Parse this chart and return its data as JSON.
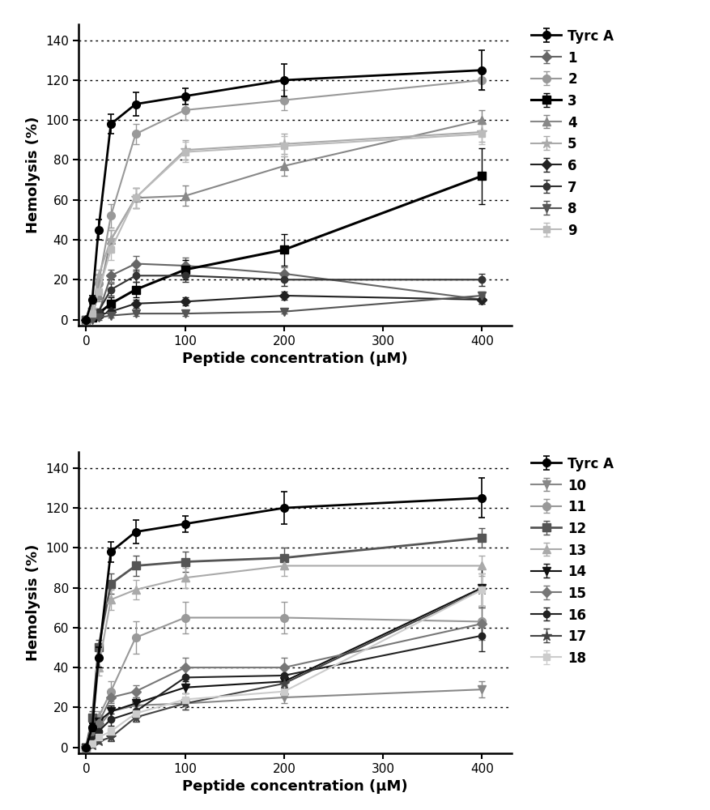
{
  "x": [
    0,
    6.25,
    12.5,
    25,
    50,
    100,
    200,
    400
  ],
  "tyrcA": {
    "y": [
      0,
      10,
      45,
      98,
      108,
      112,
      120,
      125
    ],
    "yerr": [
      0,
      2,
      5,
      5,
      6,
      4,
      8,
      10
    ],
    "color": "#000000",
    "marker": "o",
    "label": "Tyrc A",
    "lw": 2.0,
    "ms": 7
  },
  "plot1": {
    "series": [
      {
        "label": "1",
        "y": [
          0,
          1,
          3,
          22,
          28,
          27,
          23,
          10
        ],
        "yerr": [
          0,
          1,
          2,
          3,
          4,
          4,
          3,
          2
        ],
        "color": "#666666",
        "marker": "D",
        "lw": 1.5,
        "ms": 6
      },
      {
        "label": "2",
        "y": [
          0,
          4,
          18,
          52,
          93,
          105,
          110,
          120
        ],
        "yerr": [
          0,
          2,
          3,
          6,
          5,
          5,
          5,
          5
        ],
        "color": "#999999",
        "marker": "o",
        "lw": 1.5,
        "ms": 7
      },
      {
        "label": "3",
        "y": [
          0,
          1,
          3,
          8,
          15,
          25,
          35,
          72
        ],
        "yerr": [
          0,
          1,
          2,
          3,
          4,
          5,
          8,
          14
        ],
        "color": "#000000",
        "marker": "s",
        "lw": 2.2,
        "ms": 7
      },
      {
        "label": "4",
        "y": [
          0,
          3,
          12,
          40,
          61,
          62,
          77,
          100
        ],
        "yerr": [
          0,
          1,
          3,
          5,
          5,
          5,
          5,
          5
        ],
        "color": "#888888",
        "marker": "^",
        "lw": 1.5,
        "ms": 7
      },
      {
        "label": "5",
        "y": [
          0,
          5,
          22,
          40,
          61,
          85,
          88,
          94
        ],
        "yerr": [
          0,
          2,
          3,
          5,
          5,
          5,
          5,
          5
        ],
        "color": "#aaaaaa",
        "marker": "*",
        "lw": 1.5,
        "ms": 9
      },
      {
        "label": "6",
        "y": [
          0,
          1,
          2,
          4,
          8,
          9,
          12,
          10
        ],
        "yerr": [
          0,
          1,
          1,
          1,
          2,
          2,
          2,
          2
        ],
        "color": "#222222",
        "marker": "D",
        "lw": 1.5,
        "ms": 6
      },
      {
        "label": "7",
        "y": [
          0,
          2,
          4,
          15,
          22,
          22,
          20,
          20
        ],
        "yerr": [
          0,
          1,
          1,
          3,
          3,
          3,
          3,
          3
        ],
        "color": "#333333",
        "marker": "o",
        "lw": 1.5,
        "ms": 6
      },
      {
        "label": "8",
        "y": [
          0,
          0,
          1,
          2,
          3,
          3,
          4,
          12
        ],
        "yerr": [
          0,
          0,
          1,
          1,
          1,
          1,
          1,
          2
        ],
        "color": "#555555",
        "marker": "v",
        "lw": 1.5,
        "ms": 7
      },
      {
        "label": "9",
        "y": [
          0,
          3,
          14,
          35,
          61,
          84,
          87,
          93
        ],
        "yerr": [
          0,
          2,
          3,
          5,
          5,
          5,
          5,
          5
        ],
        "color": "#bbbbbb",
        "marker": "s",
        "lw": 1.5,
        "ms": 6
      }
    ]
  },
  "plot2": {
    "series": [
      {
        "label": "10",
        "y": [
          0,
          3,
          10,
          18,
          21,
          22,
          25,
          29
        ],
        "yerr": [
          0,
          1,
          2,
          3,
          3,
          3,
          3,
          4
        ],
        "color": "#888888",
        "marker": "v",
        "lw": 1.5,
        "ms": 7
      },
      {
        "label": "11",
        "y": [
          0,
          5,
          15,
          28,
          55,
          65,
          65,
          63
        ],
        "yerr": [
          0,
          2,
          3,
          5,
          8,
          8,
          8,
          8
        ],
        "color": "#999999",
        "marker": "o",
        "lw": 1.5,
        "ms": 7
      },
      {
        "label": "12",
        "y": [
          0,
          15,
          50,
          82,
          91,
          93,
          95,
          105
        ],
        "yerr": [
          0,
          3,
          4,
          5,
          5,
          5,
          5,
          5
        ],
        "color": "#555555",
        "marker": "s",
        "lw": 2.0,
        "ms": 7
      },
      {
        "label": "13",
        "y": [
          0,
          10,
          40,
          74,
          79,
          85,
          91,
          91
        ],
        "yerr": [
          0,
          2,
          4,
          5,
          5,
          5,
          5,
          5
        ],
        "color": "#aaaaaa",
        "marker": "^",
        "lw": 1.5,
        "ms": 7
      },
      {
        "label": "14",
        "y": [
          0,
          4,
          13,
          18,
          22,
          30,
          33,
          80
        ],
        "yerr": [
          0,
          2,
          3,
          3,
          3,
          3,
          3,
          10
        ],
        "color": "#111111",
        "marker": "v",
        "lw": 1.5,
        "ms": 7
      },
      {
        "label": "15",
        "y": [
          0,
          5,
          12,
          25,
          28,
          40,
          40,
          62
        ],
        "yerr": [
          0,
          2,
          2,
          3,
          3,
          5,
          5,
          8
        ],
        "color": "#777777",
        "marker": "D",
        "lw": 1.5,
        "ms": 6
      },
      {
        "label": "16",
        "y": [
          0,
          4,
          8,
          14,
          18,
          35,
          36,
          56
        ],
        "yerr": [
          0,
          1,
          2,
          3,
          3,
          5,
          5,
          8
        ],
        "color": "#222222",
        "marker": "o",
        "lw": 1.5,
        "ms": 6
      },
      {
        "label": "17",
        "y": [
          0,
          1,
          3,
          5,
          15,
          22,
          32,
          79
        ],
        "yerr": [
          0,
          1,
          1,
          2,
          2,
          3,
          3,
          8
        ],
        "color": "#444444",
        "marker": "*",
        "lw": 1.5,
        "ms": 9
      },
      {
        "label": "18",
        "y": [
          0,
          2,
          5,
          8,
          17,
          24,
          28,
          79
        ],
        "yerr": [
          0,
          1,
          1,
          2,
          2,
          3,
          3,
          8
        ],
        "color": "#cccccc",
        "marker": "s",
        "lw": 1.5,
        "ms": 6
      }
    ]
  },
  "xlabel": "Peptide concentration (μM)",
  "ylabel": "Hemolysis (%)",
  "ylim": [
    -3,
    148
  ],
  "xlim": [
    -8,
    430
  ],
  "yticks": [
    0,
    20,
    40,
    60,
    80,
    100,
    120,
    140
  ],
  "xticks": [
    0,
    100,
    200,
    300,
    400
  ],
  "dotted_yticks": [
    20,
    40,
    60,
    80,
    100,
    120,
    140
  ],
  "bg_color": "#ffffff"
}
